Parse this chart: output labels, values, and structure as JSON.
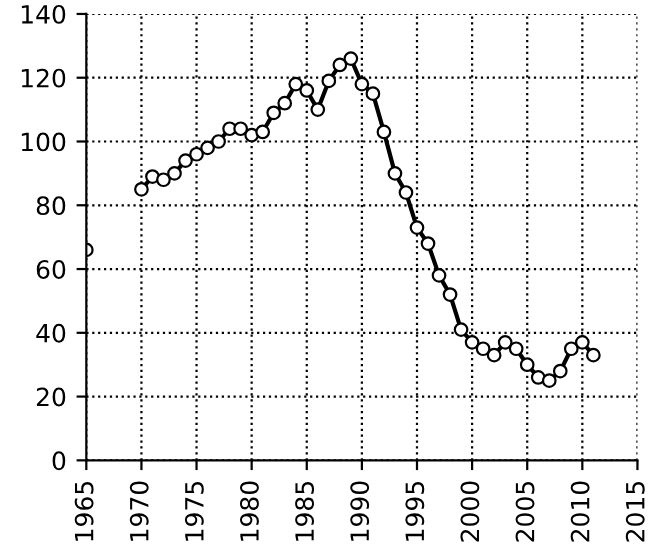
{
  "chart_data": {
    "type": "line",
    "x": [
      1965,
      1966,
      1967,
      1968,
      1969,
      1970,
      1971,
      1972,
      1973,
      1974,
      1975,
      1976,
      1977,
      1978,
      1979,
      1980,
      1981,
      1982,
      1983,
      1984,
      1985,
      1986,
      1987,
      1988,
      1989,
      1990,
      1991,
      1992,
      1993,
      1994,
      1995,
      1996,
      1997,
      1998,
      1999,
      2000,
      2001,
      2002,
      2003,
      2004,
      2005,
      2006,
      2007,
      2008,
      2009,
      2010,
      2011
    ],
    "series": [
      {
        "color": "#000000",
        "values": [
          66,
          null,
          null,
          null,
          null,
          85,
          89,
          88,
          90,
          94,
          96,
          98,
          100,
          104,
          104,
          102,
          103,
          109,
          112,
          118,
          116,
          110,
          119,
          124,
          126,
          118,
          115,
          103,
          90,
          84,
          73,
          68,
          58,
          52,
          41,
          37,
          35,
          33,
          37,
          35,
          30,
          26,
          25,
          28,
          35,
          37,
          33
        ]
      }
    ],
    "xlim": [
      1965,
      2015
    ],
    "xticks": [
      1965,
      1970,
      1975,
      1980,
      1985,
      1990,
      1995,
      2000,
      2005,
      2010,
      2015
    ],
    "ylim": [
      0,
      140
    ],
    "yticks": [
      0,
      20,
      40,
      60,
      80,
      100,
      120,
      140
    ],
    "grid": true,
    "marker": "circle",
    "line_style": "solid",
    "legend": false
  }
}
